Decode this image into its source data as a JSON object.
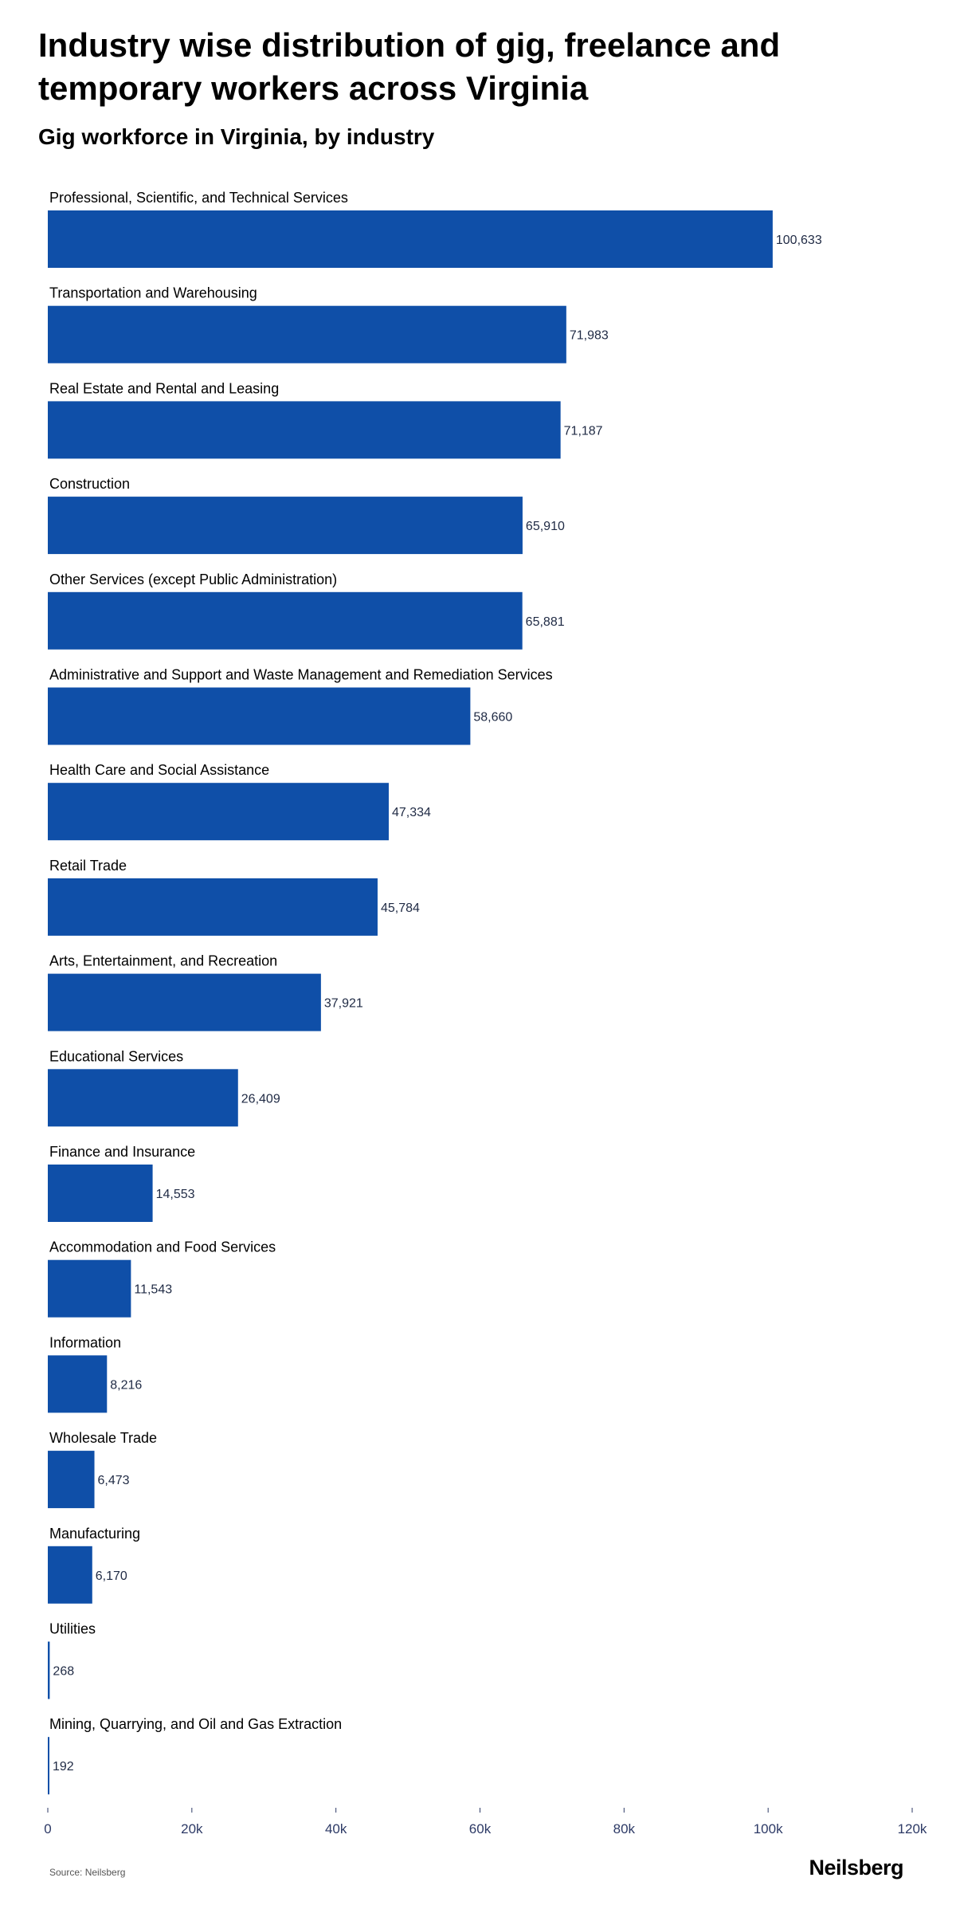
{
  "header": {
    "title": "Industry wise distribution of gig, freelance and temporary workers across Virginia",
    "subtitle": "Gig workforce in Virginia, by industry"
  },
  "footer": {
    "source": "Source: Neilsberg",
    "brand": "Neilsberg"
  },
  "colors": {
    "bar": "#0f4fa8",
    "axis": "#2d3a66"
  },
  "chart_data": {
    "type": "bar",
    "orientation": "horizontal",
    "title": "Gig workforce in Virginia, by industry",
    "xlim": [
      0,
      120000
    ],
    "ticks": [
      0,
      20000,
      40000,
      60000,
      80000,
      100000,
      120000
    ],
    "tick_labels": [
      "0",
      "20k",
      "40k",
      "60k",
      "80k",
      "100k",
      "120k"
    ],
    "grid": false,
    "categories": [
      "Professional, Scientific, and Technical Services",
      "Transportation and Warehousing",
      "Real Estate and Rental and Leasing",
      "Construction",
      "Other Services (except Public Administration)",
      "Administrative and Support and Waste Management and Remediation Services",
      "Health Care and Social Assistance",
      "Retail Trade",
      "Arts, Entertainment, and Recreation",
      "Educational Services",
      "Finance and Insurance",
      "Accommodation and Food Services",
      "Information",
      "Wholesale Trade",
      "Manufacturing",
      "Utilities",
      "Mining, Quarrying, and Oil and Gas Extraction"
    ],
    "values": [
      100633,
      71983,
      71187,
      65910,
      65881,
      58660,
      47334,
      45784,
      37921,
      26409,
      14553,
      11543,
      8216,
      6473,
      6170,
      268,
      192
    ],
    "value_labels": [
      "100,633",
      "71,983",
      "71,187",
      "65,910",
      "65,881",
      "58,660",
      "47,334",
      "45,784",
      "37,921",
      "26,409",
      "14,553",
      "11,543",
      "8,216",
      "6,473",
      "6,170",
      "268",
      "192"
    ]
  }
}
